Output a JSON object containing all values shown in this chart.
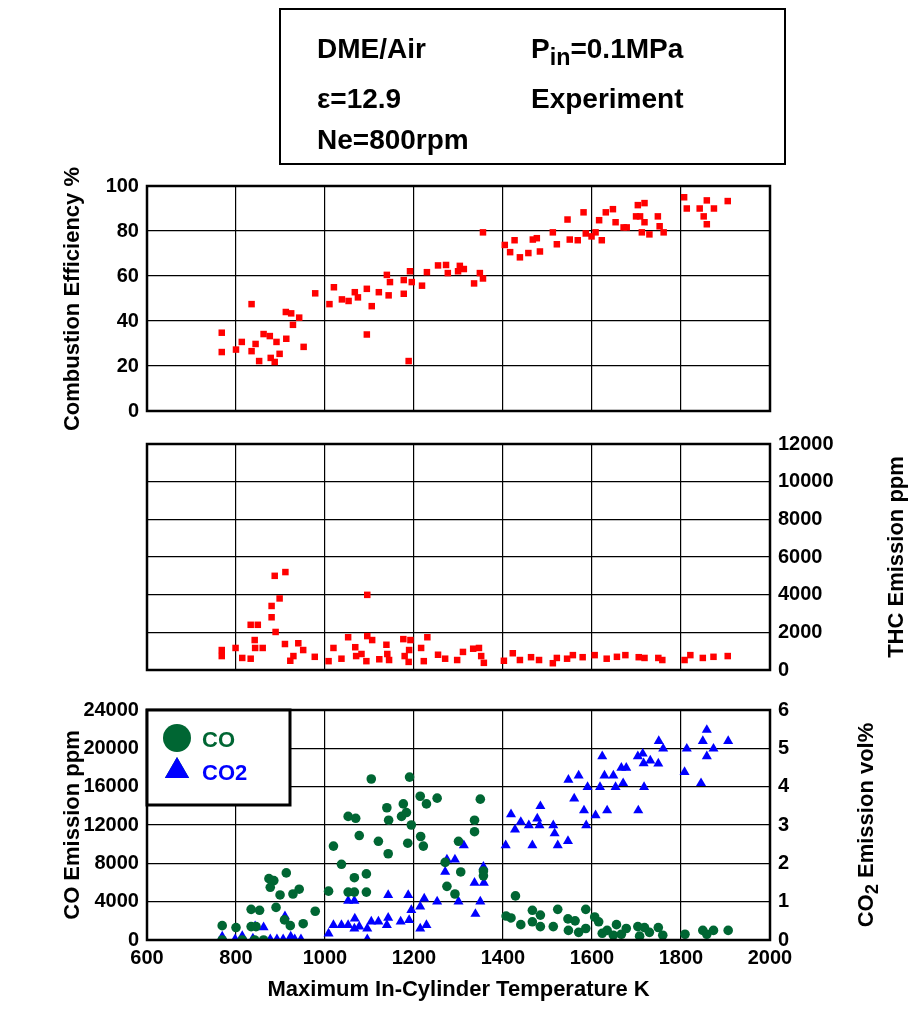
{
  "chart_data": [
    {
      "type": "scatter",
      "ylabel": "Combustion Efficiency %",
      "annotations": [
        "DME/Air",
        "P$_{in}$=0.1MPa",
        "ε=12.9",
        "Experiment",
        "Ne=800rpm"
      ],
      "xlim": [
        600,
        2000
      ],
      "xticks": [
        600,
        800,
        1000,
        1200,
        1400,
        1600,
        1800,
        2000
      ],
      "ylim": [
        0,
        100
      ],
      "yticks": [
        0,
        20,
        40,
        60,
        80,
        100
      ],
      "grid": true,
      "tick_labels": "y",
      "marker": "square",
      "series": [
        {
          "color": "#ff0000",
          "x": [
            768,
            768,
            800,
            813,
            835,
            835,
            844,
            852,
            862,
            876,
            878,
            887,
            891,
            898,
            912,
            913,
            924,
            928,
            942,
            952,
            978,
            1010,
            1020,
            1038,
            1053,
            1067,
            1074,
            1094,
            1094,
            1105,
            1121,
            1139,
            1143,
            1146,
            1177,
            1188,
            1177,
            1191,
            1195,
            1218,
            1229,
            1254,
            1272,
            1276,
            1299,
            1303,
            1312,
            1335,
            1348,
            1355,
            1355,
            1404,
            1416,
            1426,
            1438,
            1457,
            1467,
            1476,
            1483,
            1512,
            1521,
            1545,
            1550,
            1568,
            1581,
            1586,
            1599,
            1608,
            1616,
            1622,
            1631,
            1647,
            1653,
            1671,
            1678,
            1699,
            1703,
            1708,
            1712,
            1718,
            1718,
            1729,
            1748,
            1752,
            1761,
            1807,
            1813,
            1842,
            1851,
            1858,
            1858,
            1874,
            1905
          ],
          "values": [
            34.8,
            26.2,
            27.3,
            30.7,
            47.5,
            26.6,
            29.8,
            22.2,
            34.2,
            33.3,
            23.6,
            21.8,
            30.7,
            25.4,
            44,
            32.1,
            43.4,
            38.3,
            41.5,
            28.5,
            52.3,
            47.5,
            55,
            49.6,
            48.9,
            52.8,
            50.5,
            54.3,
            34,
            46.6,
            52.8,
            60.5,
            51.4,
            57.3,
            52.1,
            22.2,
            58.2,
            62.1,
            57.3,
            55.7,
            61.7,
            64.7,
            64.9,
            61.3,
            62.1,
            64.5,
            63.1,
            56.7,
            61.3,
            58.9,
            79.4,
            73.8,
            70.6,
            75.9,
            68.3,
            70.2,
            76.2,
            76.8,
            70.9,
            79.4,
            74.1,
            85.1,
            76.2,
            75.9,
            88.3,
            78.9,
            77.6,
            79.4,
            84.8,
            75.9,
            88.3,
            89.7,
            83.9,
            81.6,
            81.6,
            86.5,
            91.5,
            86.5,
            79.4,
            92.4,
            83.9,
            78.5,
            86.5,
            82.1,
            79.4,
            95,
            90,
            90,
            86.5,
            93.6,
            83,
            90,
            93.3
          ]
        }
      ]
    },
    {
      "type": "scatter",
      "y2label": "THC Emission ppm",
      "xlim": [
        600,
        2000
      ],
      "xticks": [
        600,
        800,
        1000,
        1200,
        1400,
        1600,
        1800,
        2000
      ],
      "y2lim": [
        0,
        12000
      ],
      "y2ticks": [
        0,
        2000,
        4000,
        6000,
        8000,
        10000,
        12000
      ],
      "grid": true,
      "tick_labels": "y",
      "marker": "square",
      "series": [
        {
          "color": "#ff0000",
          "axis": "y2",
          "x": [
            768,
            768,
            799,
            814,
            833,
            833,
            849,
            842,
            843,
            860,
            880,
            880,
            887,
            889,
            898,
            911,
            910,
            922,
            929,
            940,
            951,
            977,
            1008,
            1019,
            1037,
            1052,
            1068,
            1070,
            1082,
            1093,
            1095,
            1095,
            1106,
            1122,
            1138,
            1140,
            1144,
            1176,
            1179,
            1188,
            1192,
            1189,
            1216,
            1222,
            1230,
            1254,
            1270,
            1297,
            1310,
            1333,
            1346,
            1351,
            1357,
            1402,
            1422,
            1438,
            1463,
            1481,
            1512,
            1521,
            1544,
            1557,
            1579,
            1606,
            1633,
            1656,
            1675,
            1705,
            1718,
            1749,
            1758,
            1808,
            1821,
            1849,
            1873,
            1905
          ],
          "values": [
            1060,
            740,
            1170,
            640,
            600,
            2400,
            2400,
            1590,
            1170,
            1170,
            2800,
            3400,
            5000,
            2020,
            3800,
            5200,
            1380,
            490,
            740,
            1420,
            1060,
            700,
            470,
            1170,
            600,
            1740,
            1210,
            740,
            850,
            470,
            3990,
            1800,
            1590,
            570,
            1340,
            850,
            530,
            1640,
            740,
            430,
            1590,
            1060,
            1170,
            470,
            1740,
            810,
            600,
            530,
            960,
            1130,
            1170,
            740,
            380,
            490,
            890,
            530,
            680,
            530,
            360,
            640,
            600,
            790,
            680,
            790,
            600,
            700,
            790,
            680,
            640,
            640,
            530,
            530,
            790,
            640,
            700,
            740
          ]
        }
      ]
    },
    {
      "type": "scatter",
      "xlabel": "Maximum In-Cylinder Temperature K",
      "ylabel": "CO Emission ppm",
      "y2label": "CO$_{2}$ Emission vol%",
      "xlim": [
        600,
        2000
      ],
      "xticks": [
        600,
        800,
        1000,
        1200,
        1400,
        1600,
        1800,
        2000
      ],
      "ylim": [
        0,
        24000
      ],
      "yticks": [
        0,
        4000,
        8000,
        12000,
        16000,
        20000,
        24000
      ],
      "y2lim": [
        0,
        6
      ],
      "y2ticks": [
        0,
        1,
        2,
        3,
        4,
        5,
        6
      ],
      "grid": true,
      "legend": "top left",
      "series": [
        {
          "name": "CO",
          "color": "#006633",
          "marker": "circle",
          "x": [
            769,
            769,
            800,
            814,
            834,
            834,
            845,
            842,
            853,
            862,
            874,
            885,
            877,
            890,
            899,
            909,
            913,
            922,
            928,
            942,
            951,
            978,
            1008,
            1019,
            1037,
            1052,
            1066,
            1052,
            1066,
            1069,
            1077,
            1093,
            1093,
            1104,
            1120,
            1139,
            1142,
            1143,
            1172,
            1176,
            1183,
            1186,
            1190,
            1194,
            1214,
            1215,
            1221,
            1228,
            1252,
            1270,
            1274,
            1292,
            1300,
            1305,
            1336,
            1336,
            1349,
            1356,
            1356,
            1428,
            1407,
            1418,
            1440,
            1466,
            1466,
            1484,
            1484,
            1513,
            1523,
            1546,
            1547,
            1562,
            1570,
            1586,
            1586,
            1606,
            1615,
            1623,
            1634,
            1648,
            1655,
            1666,
            1677,
            1703,
            1707,
            1718,
            1729,
            1749,
            1759,
            1809,
            1849,
            1858,
            1873,
            1906
          ],
          "values": [
            1500,
            0,
            1300,
            0,
            3200,
            1400,
            1400,
            0,
            3100,
            0,
            6400,
            6200,
            5500,
            3400,
            4700,
            2100,
            7000,
            1500,
            4800,
            5300,
            1700,
            3000,
            5100,
            9800,
            7900,
            12900,
            6500,
            5000,
            5000,
            12700,
            10900,
            6900,
            5000,
            16800,
            10300,
            13800,
            9000,
            12500,
            12900,
            14200,
            13300,
            10100,
            17000,
            12000,
            15000,
            10800,
            9800,
            14200,
            14800,
            8100,
            5600,
            4800,
            10300,
            7100,
            12500,
            11300,
            14700,
            7200,
            6700,
            4600,
            2500,
            2300,
            1600,
            3100,
            1900,
            2600,
            1400,
            1400,
            3200,
            2200,
            1000,
            2000,
            800,
            3200,
            1200,
            2400,
            1900,
            700,
            1000,
            500,
            1600,
            600,
            1200,
            1400,
            400,
            1300,
            800,
            1300,
            500,
            600,
            1000,
            600,
            1000,
            1000
          ]
        },
        {
          "name": "CO2",
          "color": "#0000ff",
          "marker": "triangle",
          "axis": "y2",
          "x": [
            769,
            798,
            814,
            838,
            843,
            862,
            877,
            892,
            906,
            910,
            923,
            932,
            946,
            1008,
            1019,
            1037,
            1052,
            1052,
            1066,
            1067,
            1066,
            1077,
            1095,
            1095,
            1104,
            1120,
            1139,
            1142,
            1142,
            1170,
            1187,
            1189,
            1194,
            1214,
            1214,
            1223,
            1228,
            1252,
            1270,
            1274,
            1292,
            1300,
            1312,
            1336,
            1338,
            1349,
            1356,
            1357,
            1406,
            1418,
            1427,
            1440,
            1458,
            1466,
            1477,
            1484,
            1482,
            1513,
            1516,
            1523,
            1546,
            1547,
            1560,
            1570,
            1582,
            1587,
            1590,
            1608,
            1618,
            1623,
            1628,
            1634,
            1648,
            1653,
            1666,
            1670,
            1677,
            1703,
            1704,
            1714,
            1716,
            1717,
            1731,
            1749,
            1750,
            1760,
            1808,
            1813,
            1845,
            1849,
            1858,
            1858,
            1873,
            1906
          ],
          "values": [
            0.09,
            0.02,
            0.1,
            0.04,
            0.36,
            0.33,
            0.02,
            0.02,
            0.02,
            0.62,
            0.09,
            0.02,
            0.02,
            0.17,
            0.39,
            0.39,
            1.02,
            0.39,
            1.02,
            0.56,
            0.3,
            0.35,
            0.02,
            0.3,
            0.48,
            0.48,
            0.39,
            1.17,
            0.58,
            0.48,
            1.17,
            0.52,
            0.78,
            0.87,
            0.3,
            1.08,
            0.39,
            1.0,
            1.78,
            2.1,
            2.1,
            1.0,
            2.47,
            1.49,
            0.68,
            1.0,
            1.91,
            1.49,
            2.47,
            3.28,
            2.88,
            3.08,
            2.99,
            2.47,
            3.17,
            3.49,
            2.99,
            2.99,
            2.78,
            2.47,
            2.58,
            4.18,
            3.69,
            4.29,
            3.38,
            2.99,
            3.99,
            3.25,
            3.99,
            4.79,
            4.29,
            3.38,
            4.29,
            3.99,
            4.49,
            4.09,
            4.49,
            4.79,
            3.38,
            4.86,
            4.61,
            3.99,
            4.68,
            4.6,
            5.19,
            4.99,
            4.38,
            4.99,
            4.09,
            5.19,
            5.48,
            4.79,
            4.99,
            5.19
          ]
        }
      ]
    }
  ]
}
